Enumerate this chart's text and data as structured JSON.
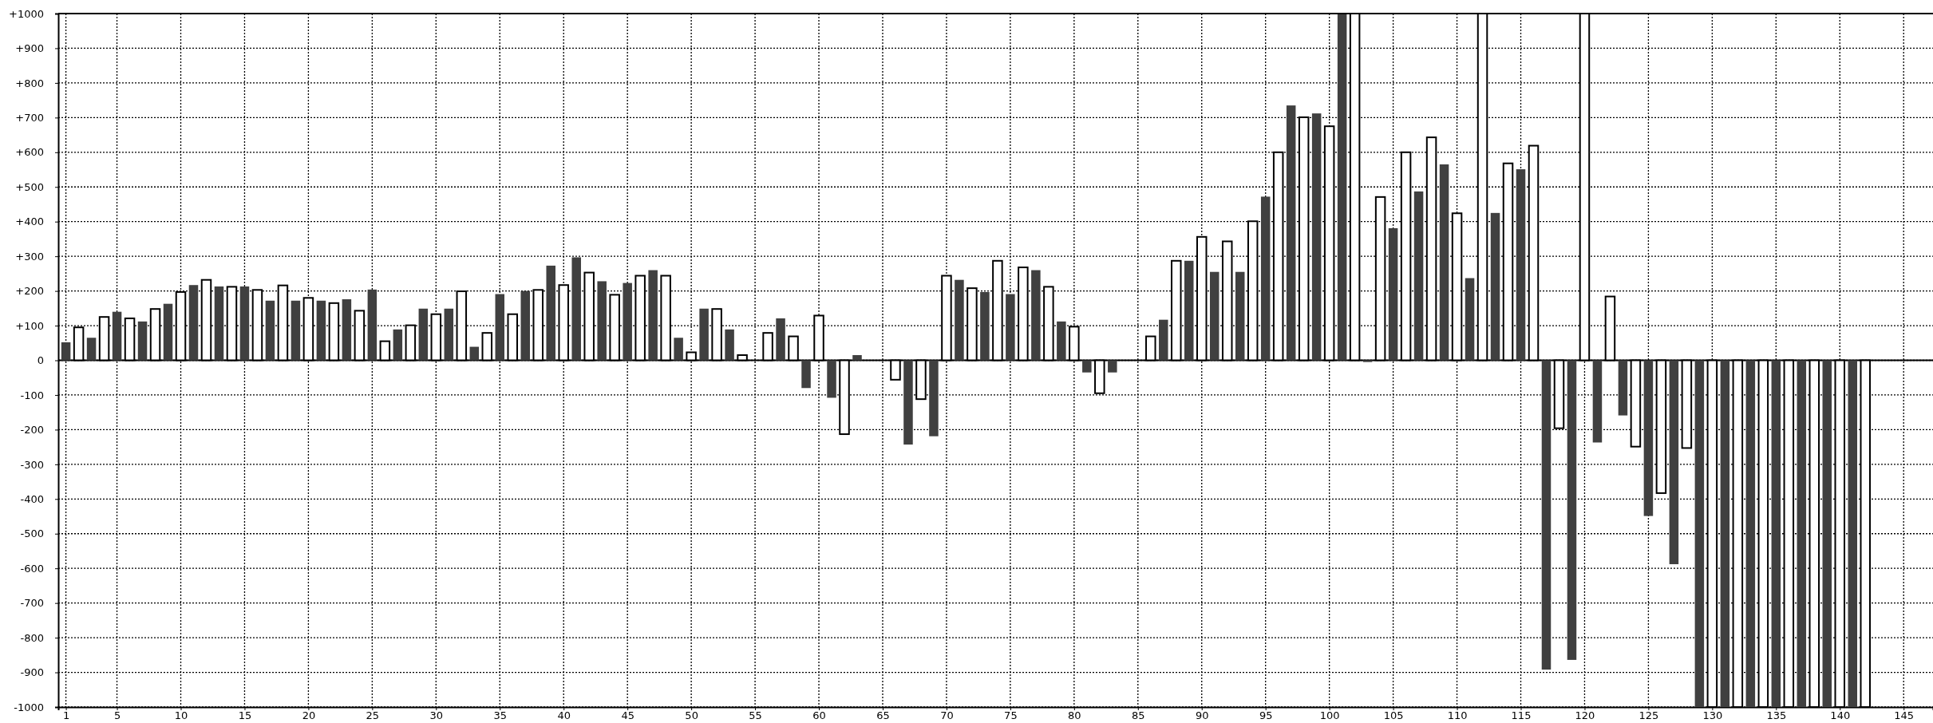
{
  "chart_data": {
    "type": "bar",
    "x": [
      1,
      2,
      3,
      4,
      5,
      6,
      7,
      8,
      9,
      10,
      11,
      12,
      13,
      14,
      15,
      16,
      17,
      18,
      19,
      20,
      21,
      22,
      23,
      24,
      25,
      26,
      27,
      28,
      29,
      30,
      31,
      32,
      33,
      34,
      35,
      36,
      37,
      38,
      39,
      40,
      41,
      42,
      43,
      44,
      45,
      46,
      47,
      48,
      49,
      50,
      51,
      52,
      53,
      54,
      56,
      57,
      58,
      59,
      60,
      61,
      62,
      63,
      66,
      67,
      68,
      69,
      70,
      71,
      72,
      73,
      74,
      75,
      76,
      77,
      78,
      79,
      80,
      81,
      82,
      83,
      86,
      87,
      88,
      89,
      90,
      91,
      92,
      93,
      94,
      95,
      96,
      97,
      98,
      99,
      100,
      101,
      102,
      103,
      104,
      105,
      106,
      107,
      108,
      109,
      110,
      111,
      112,
      113,
      114,
      115,
      116,
      117,
      118,
      119,
      120,
      121,
      122,
      123,
      124,
      125,
      126,
      127,
      128,
      129,
      130,
      131,
      132,
      133,
      134,
      135,
      136,
      137,
      138,
      139,
      140,
      141,
      142
    ],
    "values": [
      52,
      95,
      65,
      125,
      140,
      121,
      112,
      148,
      163,
      197,
      217,
      232,
      213,
      212,
      213,
      203,
      172,
      216,
      172,
      180,
      172,
      165,
      176,
      143,
      204,
      55,
      89,
      101,
      149,
      133,
      149,
      199,
      39,
      79,
      191,
      133,
      200,
      203,
      273,
      217,
      297,
      253,
      228,
      189,
      223,
      244,
      260,
      244,
      65,
      23,
      149,
      148,
      89,
      15,
      79,
      121,
      69,
      -80,
      129,
      -108,
      -213,
      15,
      -56,
      -243,
      -112,
      -219,
      244,
      232,
      208,
      197,
      287,
      191,
      268,
      260,
      212,
      112,
      97,
      -35,
      -95,
      -35,
      69,
      117,
      287,
      287,
      356,
      255,
      343,
      255,
      401,
      472,
      600,
      735,
      701,
      712,
      675,
      1000,
      1000,
      -5,
      471,
      381,
      600,
      487,
      643,
      565,
      424,
      237,
      1000,
      425,
      568,
      551,
      619,
      -892,
      -196,
      -864,
      1000,
      -237,
      184,
      -159,
      -249,
      -449,
      -383,
      -588,
      -253,
      -1000,
      -1000,
      -1000,
      -1000,
      -1000,
      -1000,
      -1000,
      -1000,
      -1000,
      -1000,
      -1000,
      -1000,
      -1000,
      -1000
    ],
    "colors": [
      "#404040",
      "#ffffff",
      "#404040",
      "#ffffff",
      "#404040",
      "#ffffff",
      "#404040",
      "#ffffff",
      "#404040",
      "#ffffff",
      "#404040",
      "#ffffff",
      "#404040",
      "#ffffff",
      "#404040",
      "#ffffff",
      "#404040",
      "#ffffff",
      "#404040",
      "#ffffff",
      "#404040",
      "#ffffff",
      "#404040",
      "#ffffff",
      "#404040",
      "#ffffff",
      "#404040",
      "#ffffff",
      "#404040",
      "#ffffff",
      "#404040",
      "#ffffff",
      "#404040",
      "#ffffff",
      "#404040",
      "#ffffff",
      "#404040",
      "#ffffff",
      "#404040",
      "#ffffff",
      "#404040",
      "#ffffff",
      "#404040",
      "#ffffff",
      "#404040",
      "#ffffff",
      "#404040",
      "#ffffff",
      "#404040",
      "#ffffff",
      "#404040",
      "#ffffff",
      "#404040",
      "#ffffff",
      "#ffffff",
      "#404040",
      "#ffffff",
      "#404040",
      "#ffffff",
      "#404040",
      "#ffffff",
      "#404040",
      "#ffffff",
      "#404040",
      "#ffffff",
      "#404040",
      "#ffffff",
      "#404040",
      "#ffffff",
      "#404040",
      "#ffffff",
      "#404040",
      "#ffffff",
      "#404040",
      "#ffffff",
      "#404040",
      "#ffffff",
      "#404040",
      "#ffffff",
      "#404040",
      "#ffffff",
      "#404040",
      "#ffffff",
      "#404040",
      "#ffffff",
      "#404040",
      "#ffffff",
      "#404040",
      "#ffffff",
      "#404040",
      "#ffffff",
      "#404040",
      "#ffffff",
      "#404040",
      "#ffffff",
      "#404040",
      "#ffffff",
      "#404040",
      "#ffffff",
      "#404040",
      "#ffffff",
      "#404040",
      "#ffffff",
      "#404040",
      "#ffffff",
      "#404040",
      "#ffffff",
      "#404040",
      "#ffffff",
      "#404040",
      "#ffffff",
      "#404040",
      "#ffffff",
      "#404040",
      "#ffffff",
      "#404040",
      "#ffffff",
      "#404040",
      "#ffffff",
      "#404040",
      "#ffffff",
      "#404040",
      "#ffffff",
      "#404040",
      "#ffffff",
      "#404040",
      "#ffffff",
      "#404040",
      "#ffffff",
      "#404040",
      "#ffffff",
      "#404040",
      "#ffffff",
      "#404040",
      "#ffffff",
      "#404040",
      "#ffffff"
    ],
    "xlim": [
      0.4,
      147.3
    ],
    "xticks": [
      1,
      5,
      10,
      15,
      20,
      25,
      30,
      35,
      40,
      45,
      50,
      55,
      60,
      65,
      70,
      75,
      80,
      85,
      90,
      95,
      100,
      105,
      110,
      115,
      120,
      125,
      130,
      135,
      140,
      145
    ],
    "ylim": [
      -1000,
      1000
    ],
    "yticks": [
      -1000,
      -900,
      -800,
      -700,
      -600,
      -500,
      -400,
      -300,
      -200,
      -100,
      0,
      {
        "value": 100,
        "label": "+100"
      },
      {
        "value": 200,
        "label": "+200"
      },
      {
        "value": 300,
        "label": "+300"
      },
      {
        "value": 400,
        "label": "+400"
      },
      {
        "value": 500,
        "label": "+500"
      },
      {
        "value": 600,
        "label": "+600"
      },
      {
        "value": 700,
        "label": "+700"
      },
      {
        "value": 800,
        "label": "+800"
      },
      {
        "value": 900,
        "label": "+900"
      },
      {
        "value": 1000,
        "label": "+1000"
      }
    ],
    "grid": true
  }
}
